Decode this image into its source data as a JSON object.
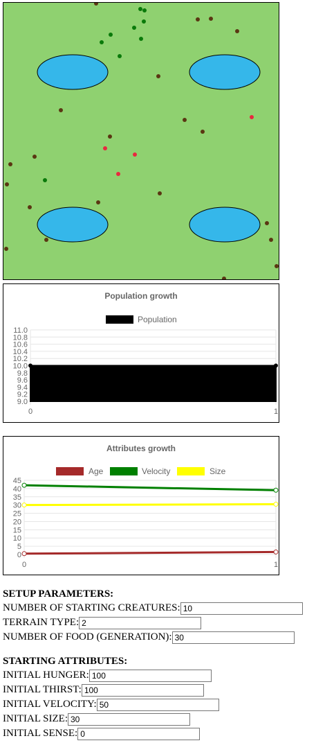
{
  "simulation": {
    "background": "#8fd170",
    "water_color": "#35b7ea",
    "creature_colors": {
      "brown": "#5a3712",
      "green": "#0a7a0a",
      "red": "#e8293f"
    }
  },
  "charts": {
    "population": {
      "title": "Population growth",
      "legend": "Population",
      "y_ticks": [
        "11.0",
        "10.8",
        "10.6",
        "10.4",
        "10.2",
        "10.0",
        "9.8",
        "9.6",
        "9.4",
        "9.2",
        "9.0"
      ],
      "x_ticks": [
        "0",
        "1"
      ]
    },
    "attributes": {
      "title": "Attributes growth",
      "legend": [
        "Age",
        "Velocity",
        "Size"
      ],
      "y_ticks": [
        "45",
        "40",
        "35",
        "30",
        "25",
        "20",
        "15",
        "10",
        "5",
        "0"
      ],
      "x_ticks": [
        "0",
        "1"
      ]
    }
  },
  "chart_data": [
    {
      "type": "area",
      "title": "Population growth",
      "x": [
        0,
        1
      ],
      "series": [
        {
          "name": "Population",
          "values": [
            10,
            10
          ],
          "color": "#000000"
        }
      ],
      "ylim": [
        9.0,
        11.0
      ],
      "legend": "top"
    },
    {
      "type": "line",
      "title": "Attributes growth",
      "x": [
        0,
        1
      ],
      "series": [
        {
          "name": "Age",
          "values": [
            0.5,
            1.5
          ],
          "color": "#a52a2a"
        },
        {
          "name": "Velocity",
          "values": [
            42,
            39
          ],
          "color": "#008000"
        },
        {
          "name": "Size",
          "values": [
            30,
            30.5
          ],
          "color": "#ffff00"
        }
      ],
      "ylim": [
        0,
        45
      ],
      "legend": "top"
    }
  ],
  "setup": {
    "heading": "SETUP PARAMETERS:",
    "fields": [
      {
        "label": "NUMBER OF STARTING CREATURES:",
        "value": "10"
      },
      {
        "label": "TERRAIN TYPE:",
        "value": "2"
      },
      {
        "label": "NUMBER OF FOOD (GENERATION):",
        "value": "30"
      }
    ]
  },
  "attributes": {
    "heading": "STARTING ATTRIBUTES:",
    "fields": [
      {
        "label": "INITIAL HUNGER:",
        "value": "100"
      },
      {
        "label": "INITIAL THIRST:",
        "value": "100"
      },
      {
        "label": "INITIAL VELOCITY:",
        "value": "50"
      },
      {
        "label": "INITIAL SIZE:",
        "value": "30"
      },
      {
        "label": "INITIAL SENSE:",
        "value": "0"
      }
    ]
  }
}
